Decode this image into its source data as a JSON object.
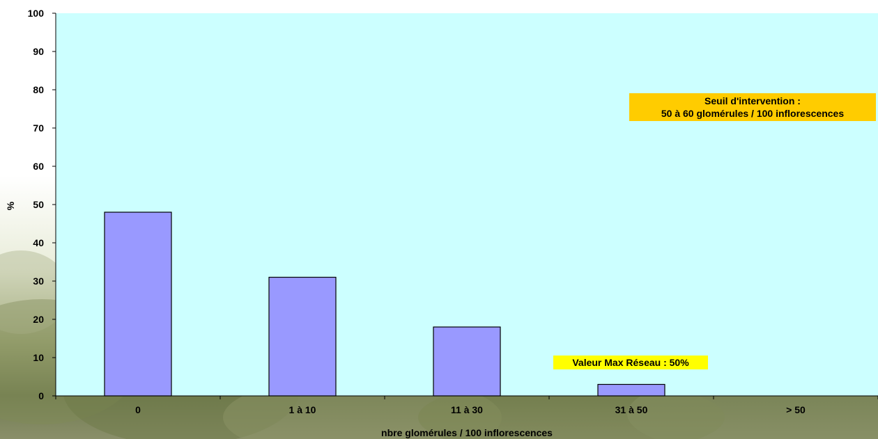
{
  "chart_data": {
    "type": "bar",
    "categories": [
      "0",
      "1 à 10",
      "11 à 30",
      "31 à 50",
      "> 50"
    ],
    "values": [
      48,
      31,
      18,
      3,
      0
    ],
    "title": "",
    "xlabel": "nbre glomérules / 100 inflorescences",
    "ylabel": "%",
    "ylim": [
      0,
      100
    ],
    "yticks": [
      "0",
      "10",
      "20",
      "30",
      "40",
      "50",
      "60",
      "70",
      "80",
      "90",
      "100"
    ],
    "grid": false,
    "bar_color": "#9999ff",
    "plot_background": "#ccffff",
    "annotations": [
      {
        "lines": [
          "Seuil d'intervention :",
          "50 à 60 glomérules / 100 inflorescences"
        ],
        "background": "#ffcc00"
      },
      {
        "lines": [
          "Valeur Max Réseau : 50%"
        ],
        "background": "#ffff00"
      }
    ]
  }
}
